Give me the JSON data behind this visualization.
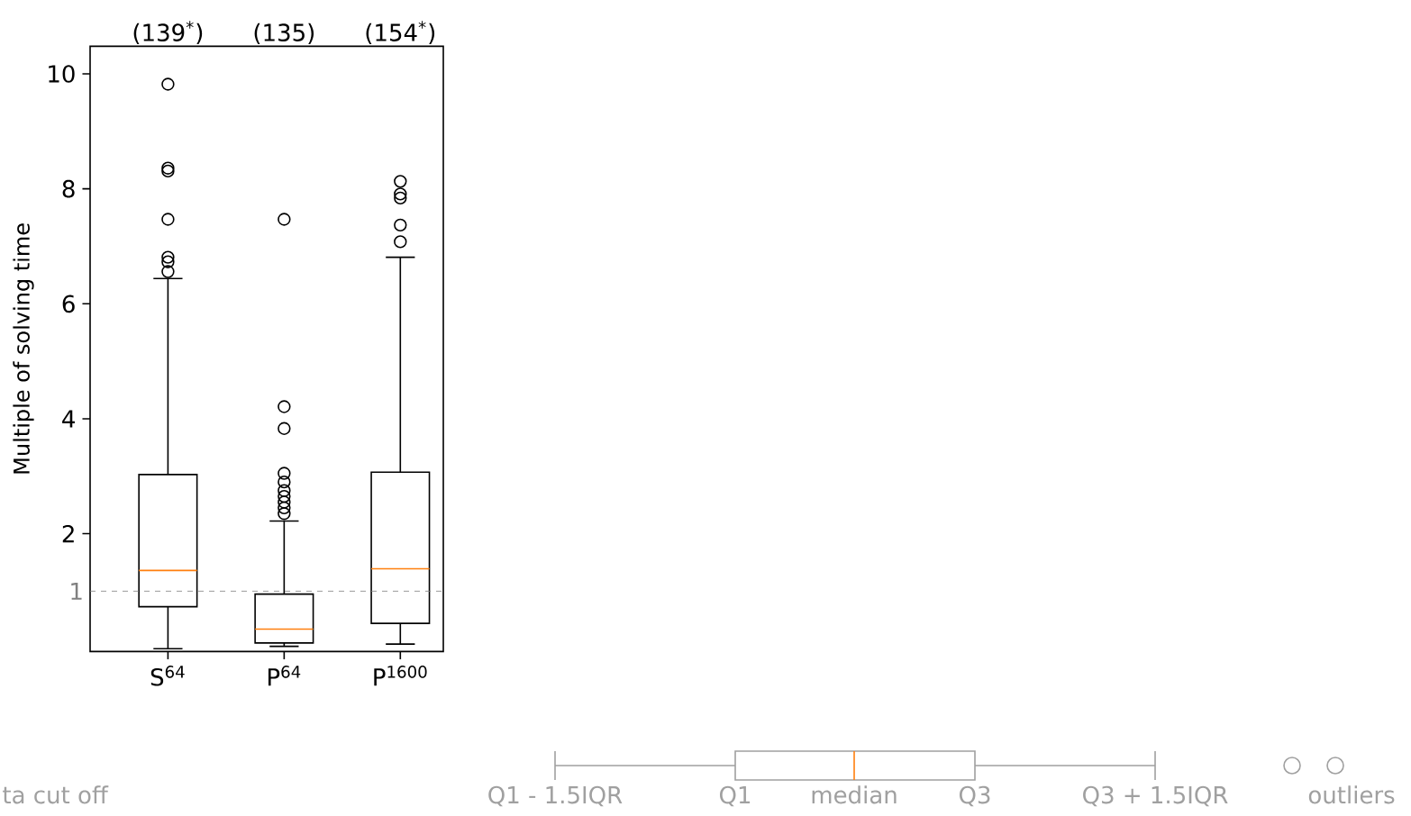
{
  "chart_data": {
    "type": "box",
    "ylabel": "Multiple of solving time",
    "categories": [
      "S$^{64}$",
      "P$^{64}$",
      "P$^{1600}$"
    ],
    "boxes": [
      {
        "low": 0.0,
        "q1": 0.73,
        "median": 1.36,
        "q3": 3.03,
        "high": 6.44,
        "outliers": [
          9.82,
          8.36,
          8.31,
          7.47,
          6.81,
          6.73,
          6.56
        ]
      },
      {
        "low": 0.04,
        "q1": 0.1,
        "median": 0.34,
        "q3": 0.95,
        "high": 2.22,
        "outliers": [
          7.47,
          4.21,
          3.83,
          3.05,
          2.9,
          2.75,
          2.65,
          2.55,
          2.45,
          2.35
        ]
      },
      {
        "low": 0.08,
        "q1": 0.44,
        "median": 1.39,
        "q3": 3.07,
        "high": 6.81,
        "outliers": [
          8.13,
          7.91,
          7.84,
          7.37,
          7.08
        ]
      }
    ],
    "ylim": [
      -0.05,
      10.48
    ],
    "yticks": [
      2,
      4,
      6,
      8,
      10
    ],
    "marker": "circle",
    "ref_lines": [
      {
        "axis": "y",
        "value": 1,
        "label": "1",
        "color": "#808080",
        "line_style": "dashed"
      }
    ],
    "annotations": [
      "(139$^{*}$)",
      "(135)",
      "(154$^{*}$)",
      "ta cut off",
      "Q1 - 1.5IQR",
      "Q1",
      "median",
      "Q3",
      "Q3 + 1.5IQR",
      "outliers"
    ]
  }
}
